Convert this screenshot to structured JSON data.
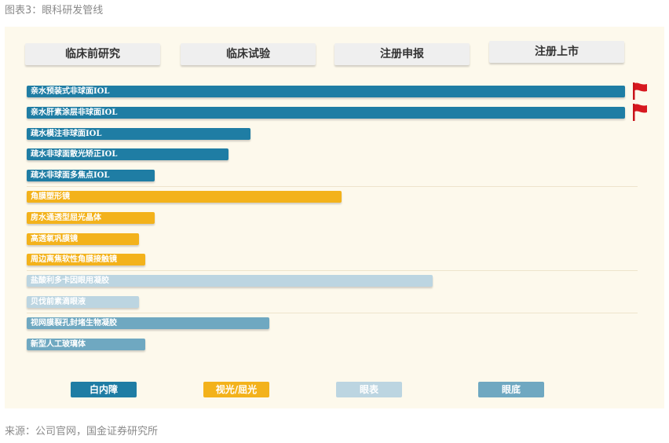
{
  "figure_title": "图表3：眼科研发管线",
  "source": "来源：公司官网，国金证券研究所",
  "colors": {
    "cataract": "#1f7da4",
    "vision": "#f3b21b",
    "surface": "#bcd5e1",
    "fundus": "#6fa8c1"
  },
  "chart_data": {
    "type": "bar",
    "orientation": "horizontal",
    "stages": [
      "临床前研究",
      "临床试验",
      "注册申报",
      "注册上市"
    ],
    "value_unit": "development stage progress (0 = start, 4 = end of 注册上市)",
    "xlim": [
      0,
      4
    ],
    "items": [
      {
        "label": "亲水预装式非球面IOL",
        "value": 3.88,
        "category": "白内障",
        "flag": true
      },
      {
        "label": "亲水肝素涂层非球面IOL",
        "value": 3.88,
        "category": "白内障",
        "flag": true
      },
      {
        "label": "疏水模注非球面IOL",
        "value": 1.45,
        "category": "白内障",
        "flag": false
      },
      {
        "label": "疏水非球面散光矫正IOL",
        "value": 1.31,
        "category": "白内障",
        "flag": false
      },
      {
        "label": "疏水非球面多焦点IOL",
        "value": 0.83,
        "category": "白内障",
        "flag": false
      },
      {
        "label": "角膜塑形镜",
        "value": 2.04,
        "category": "视光/屈光",
        "flag": false
      },
      {
        "label": "房水通透型屈光晶体",
        "value": 0.83,
        "category": "视光/屈光",
        "flag": false
      },
      {
        "label": "高透氧巩膜镜",
        "value": 0.73,
        "category": "视光/屈光",
        "flag": false
      },
      {
        "label": "周边离焦软性角膜接触镜",
        "value": 0.77,
        "category": "视光/屈光",
        "flag": false
      },
      {
        "label": "盐酸利多卡因眼用凝胶",
        "value": 2.63,
        "category": "眼表",
        "flag": false
      },
      {
        "label": "贝伐前素滴眼液",
        "value": 0.73,
        "category": "眼表",
        "flag": false
      },
      {
        "label": "视网膜裂孔封堵生物凝胶",
        "value": 1.57,
        "category": "眼底",
        "flag": false
      },
      {
        "label": "新型人工玻璃体",
        "value": 0.77,
        "category": "眼底",
        "flag": false
      }
    ],
    "legend": [
      "白内障",
      "视光/屈光",
      "眼表",
      "眼底"
    ],
    "legend_placement": "bottom"
  }
}
